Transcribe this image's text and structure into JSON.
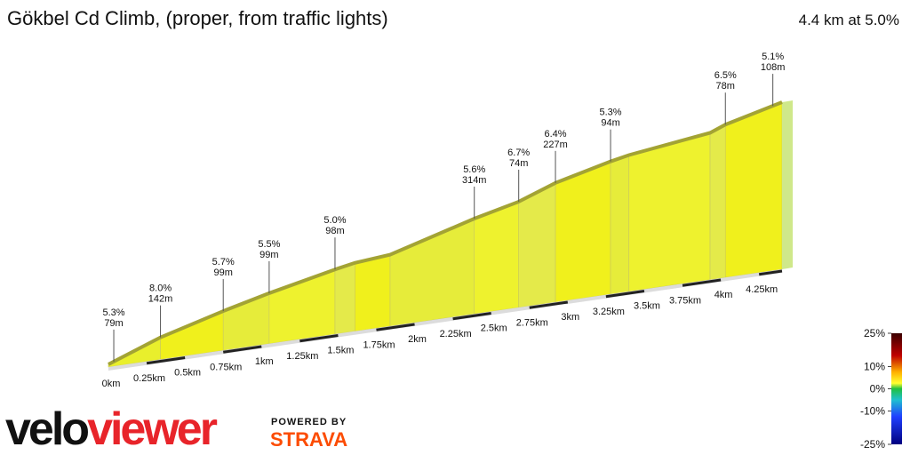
{
  "chart_data": {
    "type": "profile",
    "title": "Gökbel Cd Climb, (proper, from traffic lights)",
    "subtitle": "4.4 km at 5.0%",
    "x": [
      0,
      0.34,
      0.75,
      1.05,
      1.48,
      1.61,
      1.84,
      2.39,
      2.68,
      2.92,
      3.28,
      3.4,
      3.93,
      4.03,
      4.4
    ],
    "values": [
      0,
      26,
      49,
      64,
      83,
      88,
      92,
      124,
      138,
      156,
      174,
      179,
      193,
      201,
      220
    ],
    "color": "#e9ef2c",
    "edge_color": "#a3a334",
    "xlim": [
      0,
      4.4
    ],
    "ylim": [
      0,
      220
    ],
    "xticks": [
      {
        "value": 0,
        "label": "0km"
      },
      {
        "value": 0.25,
        "label": "0.25km"
      },
      {
        "value": 0.5,
        "label": "0.5km"
      },
      {
        "value": 0.75,
        "label": "0.75km"
      },
      {
        "value": 1,
        "label": "1km"
      },
      {
        "value": 1.25,
        "label": "1.25km"
      },
      {
        "value": 1.5,
        "label": "1.5km"
      },
      {
        "value": 1.75,
        "label": "1.75km"
      },
      {
        "value": 2,
        "label": "2km"
      },
      {
        "value": 2.25,
        "label": "2.25km"
      },
      {
        "value": 2.5,
        "label": "2.5km"
      },
      {
        "value": 2.75,
        "label": "2.75km"
      },
      {
        "value": 3,
        "label": "3km"
      },
      {
        "value": 3.25,
        "label": "3.25km"
      },
      {
        "value": 3.5,
        "label": "3.5km"
      },
      {
        "value": 3.75,
        "label": "3.75km"
      },
      {
        "value": 4,
        "label": "4km"
      },
      {
        "value": 4.25,
        "label": "4.25km"
      }
    ],
    "annotations": {
      "x": [
        0.035,
        0.34,
        0.75,
        1.05,
        1.48,
        2.39,
        2.68,
        2.92,
        3.28,
        4.03,
        4.34
      ],
      "grade_labels": [
        "5.3%",
        "8.0%",
        "5.7%",
        "5.5%",
        "5.0%",
        "5.6%",
        "6.7%",
        "6.4%",
        "5.3%",
        "6.5%",
        "5.1%"
      ],
      "length_labels": [
        "79m",
        "142m",
        "99m",
        "99m",
        "98m",
        "314m",
        "74m",
        "227m",
        "94m",
        "78m",
        "108m"
      ]
    },
    "scale": {
      "lim": [
        -25,
        25
      ],
      "ticks": [
        {
          "value": 25,
          "label": "25%"
        },
        {
          "value": 10,
          "label": "10%"
        },
        {
          "value": 0,
          "label": "0%"
        },
        {
          "value": -10,
          "label": "-10%"
        },
        {
          "value": -25,
          "label": "-25%"
        }
      ]
    }
  },
  "branding": {
    "logo_velo": "velo",
    "logo_viewer": "viewer",
    "powered_by": "POWERED BY",
    "strava": "STRAVA"
  }
}
